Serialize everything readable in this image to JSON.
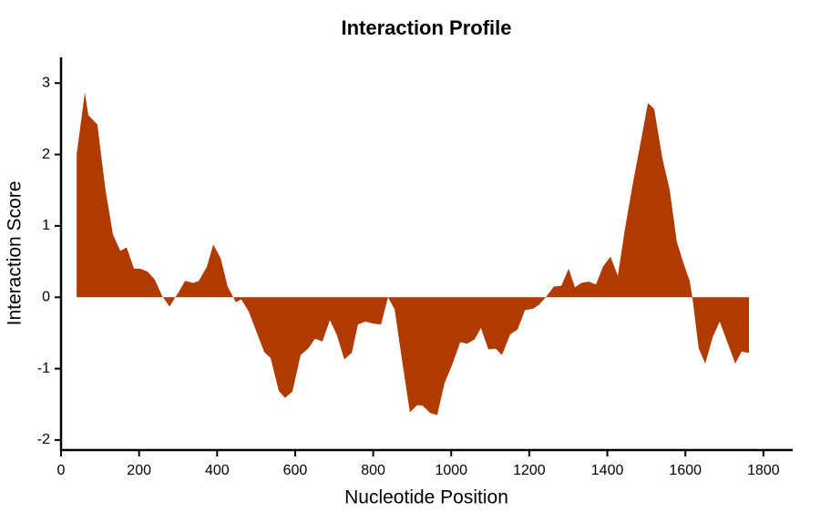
{
  "chart_data": {
    "type": "area",
    "title": "Interaction Profile",
    "x_label": "Nucleotide Position",
    "y_label": "Interaction Score",
    "color": "#b03a00",
    "grid": false,
    "x": [
      40,
      61,
      70,
      93,
      114,
      133,
      152,
      168,
      187,
      203,
      222,
      240,
      259,
      278,
      299,
      318,
      338,
      353,
      374,
      390,
      409,
      427,
      448,
      462,
      481,
      502,
      521,
      537,
      558,
      574,
      593,
      614,
      633,
      651,
      670,
      689,
      707,
      726,
      745,
      761,
      780,
      801,
      820,
      838,
      855,
      873,
      894,
      913,
      927,
      946,
      964,
      983,
      1002,
      1023,
      1041,
      1060,
      1076,
      1095,
      1114,
      1130,
      1151,
      1170,
      1189,
      1210,
      1226,
      1245,
      1263,
      1282,
      1301,
      1317,
      1333,
      1352,
      1371,
      1389,
      1408,
      1427,
      1445,
      1464,
      1483,
      1504,
      1520,
      1541,
      1560,
      1578,
      1595,
      1611,
      1618,
      1634,
      1651,
      1670,
      1688,
      1707,
      1728,
      1744,
      1763
    ],
    "values": [
      2.0,
      2.87,
      2.55,
      2.42,
      1.5,
      0.88,
      0.65,
      0.7,
      0.4,
      0.4,
      0.36,
      0.25,
      0.02,
      -0.13,
      0.05,
      0.23,
      0.2,
      0.23,
      0.43,
      0.74,
      0.55,
      0.15,
      -0.07,
      -0.03,
      -0.2,
      -0.5,
      -0.77,
      -0.85,
      -1.31,
      -1.41,
      -1.32,
      -0.81,
      -0.72,
      -0.58,
      -0.62,
      -0.32,
      -0.53,
      -0.87,
      -0.78,
      -0.38,
      -0.34,
      -0.37,
      -0.38,
      0,
      -0.17,
      -0.85,
      -1.61,
      -1.51,
      -1.52,
      -1.62,
      -1.65,
      -1.2,
      -0.95,
      -0.63,
      -0.65,
      -0.59,
      -0.43,
      -0.73,
      -0.72,
      -0.81,
      -0.52,
      -0.45,
      -0.18,
      -0.16,
      -0.1,
      0.02,
      0.15,
      0.16,
      0.4,
      0.14,
      0.2,
      0.22,
      0.18,
      0.43,
      0.57,
      0.3,
      0.95,
      1.55,
      2.1,
      2.72,
      2.64,
      1.95,
      1.5,
      0.78,
      0.48,
      0.23,
      0,
      -0.71,
      -0.93,
      -0.56,
      -0.34,
      -0.62,
      -0.93,
      -0.76,
      -0.78
    ],
    "xlim": [
      0,
      1875
    ],
    "ylim": [
      -2.14,
      3.36
    ],
    "xticks": [
      0,
      200,
      400,
      600,
      800,
      1000,
      1200,
      1400,
      1600,
      1800
    ],
    "yticks": [
      -2,
      -1,
      0,
      1,
      2,
      3
    ]
  }
}
